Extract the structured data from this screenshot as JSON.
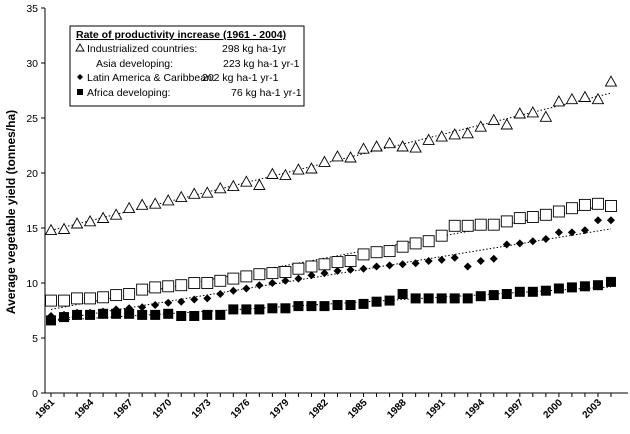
{
  "chart_data": {
    "type": "scatter",
    "ylabel": "Average vegetable yield (tonnes/ha)",
    "ylim": [
      0,
      35
    ],
    "yticks": [
      0,
      5,
      10,
      15,
      20,
      25,
      30,
      35
    ],
    "xlim": [
      1961,
      2005
    ],
    "xtick_labels": [
      "1961",
      "1964",
      "1967",
      "1970",
      "1973",
      "1976",
      "1979",
      "1982",
      "1985",
      "1988",
      "1991",
      "1994",
      "1997",
      "2000",
      "2003"
    ],
    "legend": {
      "title": "Rate of productivity increase (1961 - 2004)",
      "entries": [
        {
          "marker": "triangle",
          "label": "Industrialized countries:",
          "value": "298 kg ha-1yr"
        },
        {
          "marker": "square-open",
          "label": "Asia developing:",
          "value": "223 kg ha-1 yr-1"
        },
        {
          "marker": "diamond",
          "label": "Latin America & Caribbean:",
          "value": "202 kg ha-1 yr-1"
        },
        {
          "marker": "square-filled",
          "label": "Africa developing:",
          "value": "76 kg ha-1 yr-1"
        }
      ]
    },
    "series": [
      {
        "marker": "triangle",
        "trendline": true,
        "x": [
          1961,
          1962,
          1963,
          1964,
          1965,
          1966,
          1967,
          1968,
          1969,
          1970,
          1971,
          1972,
          1973,
          1974,
          1975,
          1976,
          1977,
          1978,
          1979,
          1980,
          1981,
          1982,
          1983,
          1984,
          1985,
          1986,
          1987,
          1988,
          1989,
          1990,
          1991,
          1992,
          1993,
          1994,
          1995,
          1996,
          1997,
          1998,
          1999,
          2000,
          2001,
          2002,
          2003,
          2004
        ],
        "y": [
          14.8,
          14.9,
          15.4,
          15.6,
          15.9,
          16.2,
          16.8,
          17.1,
          17.2,
          17.5,
          17.8,
          18.1,
          18.2,
          18.6,
          18.8,
          19.2,
          18.9,
          19.9,
          19.8,
          20.3,
          20.4,
          21.0,
          21.5,
          21.4,
          22.2,
          22.4,
          22.7,
          22.4,
          22.3,
          23.0,
          23.3,
          23.5,
          23.6,
          24.2,
          24.8,
          24.4,
          25.4,
          25.5,
          25.1,
          26.5,
          26.7,
          26.9,
          26.7,
          28.3
        ]
      },
      {
        "marker": "square-open",
        "trendline": true,
        "x": [
          1961,
          1962,
          1963,
          1964,
          1965,
          1966,
          1967,
          1968,
          1969,
          1970,
          1971,
          1972,
          1973,
          1974,
          1975,
          1976,
          1977,
          1978,
          1979,
          1980,
          1981,
          1982,
          1983,
          1984,
          1985,
          1986,
          1987,
          1988,
          1989,
          1990,
          1991,
          1992,
          1993,
          1994,
          1995,
          1996,
          1997,
          1998,
          1999,
          2000,
          2001,
          2002,
          2003,
          2004
        ],
        "y": [
          8.4,
          8.4,
          8.6,
          8.6,
          8.7,
          8.9,
          9.0,
          9.4,
          9.6,
          9.7,
          9.8,
          10.0,
          10.0,
          10.2,
          10.4,
          10.6,
          10.8,
          10.9,
          11.0,
          11.3,
          11.5,
          11.7,
          11.9,
          12.0,
          12.6,
          12.8,
          12.9,
          13.3,
          13.6,
          13.8,
          14.3,
          15.2,
          15.2,
          15.3,
          15.3,
          15.6,
          15.9,
          16.0,
          16.2,
          16.5,
          16.8,
          17.1,
          17.2,
          17.0
        ]
      },
      {
        "marker": "diamond",
        "trendline": true,
        "x": [
          1961,
          1962,
          1963,
          1964,
          1965,
          1966,
          1967,
          1968,
          1969,
          1970,
          1971,
          1972,
          1973,
          1974,
          1975,
          1976,
          1977,
          1978,
          1979,
          1980,
          1981,
          1982,
          1983,
          1984,
          1985,
          1986,
          1987,
          1988,
          1989,
          1990,
          1991,
          1992,
          1993,
          1994,
          1995,
          1996,
          1997,
          1998,
          1999,
          2000,
          2001,
          2002,
          2003,
          2004
        ],
        "y": [
          7.0,
          7.1,
          7.3,
          7.3,
          7.4,
          7.6,
          7.7,
          7.8,
          8.0,
          8.2,
          8.3,
          8.5,
          8.6,
          9.0,
          9.3,
          9.5,
          9.8,
          10.0,
          10.2,
          10.4,
          10.7,
          10.9,
          11.1,
          11.2,
          11.3,
          11.5,
          11.6,
          11.7,
          11.8,
          12.0,
          12.1,
          12.3,
          11.5,
          12.0,
          12.2,
          13.5,
          13.6,
          13.8,
          14.0,
          14.6,
          14.6,
          14.8,
          15.7,
          15.7
        ]
      },
      {
        "marker": "square-filled",
        "trendline": true,
        "x": [
          1961,
          1962,
          1963,
          1964,
          1965,
          1966,
          1967,
          1968,
          1969,
          1970,
          1971,
          1972,
          1973,
          1974,
          1975,
          1976,
          1977,
          1978,
          1979,
          1980,
          1981,
          1982,
          1983,
          1984,
          1985,
          1986,
          1987,
          1988,
          1989,
          1990,
          1991,
          1992,
          1993,
          1994,
          1995,
          1996,
          1997,
          1998,
          1999,
          2000,
          2001,
          2002,
          2003,
          2004
        ],
        "y": [
          6.6,
          6.9,
          7.1,
          7.1,
          7.2,
          7.2,
          7.2,
          7.1,
          7.1,
          7.2,
          7.0,
          7.0,
          7.1,
          7.1,
          7.6,
          7.6,
          7.6,
          7.7,
          7.7,
          7.9,
          7.9,
          7.9,
          8.0,
          8.0,
          8.1,
          8.3,
          8.4,
          9.0,
          8.6,
          8.6,
          8.6,
          8.6,
          8.6,
          8.8,
          8.9,
          9.0,
          9.2,
          9.2,
          9.3,
          9.5,
          9.6,
          9.7,
          9.8,
          10.1
        ]
      }
    ]
  }
}
